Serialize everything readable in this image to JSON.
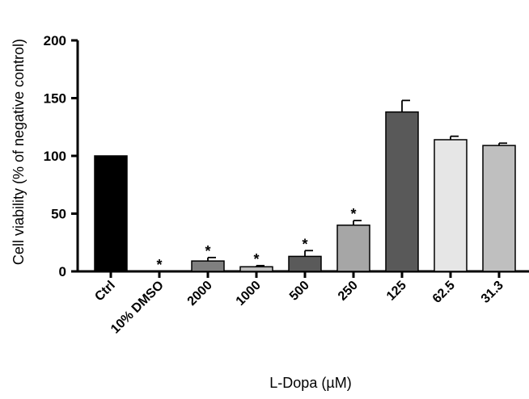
{
  "chart_data": {
    "type": "bar",
    "title": "",
    "ylabel": "Cell viability (% of negative control)",
    "xlabel": "L-Dopa (µM)",
    "ylim": [
      0,
      200
    ],
    "yticks": [
      0,
      50,
      100,
      150,
      200
    ],
    "categories": [
      "Ctrl",
      "10% DMSO",
      "2000",
      "1000",
      "500",
      "250",
      "125",
      "62.5",
      "31.3"
    ],
    "values": [
      100,
      0,
      9,
      4,
      13,
      40,
      138,
      114,
      109
    ],
    "errors": [
      0,
      0,
      3,
      1,
      5,
      4,
      10,
      3,
      2
    ],
    "significance": [
      "",
      "*",
      "*",
      "*",
      "*",
      "*",
      "",
      "",
      ""
    ],
    "bar_colors": [
      "#000000",
      "#000000",
      "#7f7f7f",
      "#bdbdbd",
      "#5a5a5a",
      "#a6a6a6",
      "#595959",
      "#e6e6e6",
      "#bfbfbf"
    ],
    "grid": false,
    "legend": "none"
  }
}
